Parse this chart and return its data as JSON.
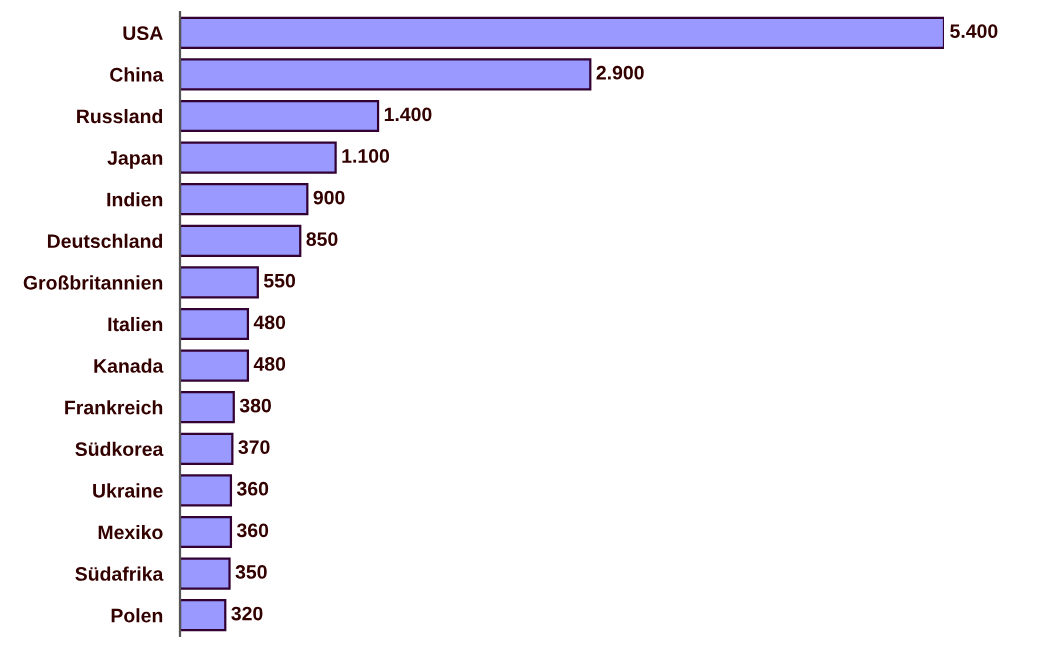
{
  "chart_data": {
    "type": "bar",
    "orientation": "horizontal",
    "color": "#9999ff",
    "categories": [
      "USA",
      "China",
      "Russland",
      "Japan",
      "Indien",
      "Deutschland",
      "Großbritannien",
      "Italien",
      "Kanada",
      "Frankreich",
      "Südkorea",
      "Ukraine",
      "Mexiko",
      "Südafrika",
      "Polen"
    ],
    "values": [
      5400,
      2900,
      1400,
      1100,
      900,
      850,
      550,
      480,
      480,
      380,
      370,
      360,
      360,
      350,
      320
    ],
    "value_labels": [
      "5.400",
      "2.900",
      "1.400",
      "1.100",
      "900",
      "850",
      "550",
      "480",
      "480",
      "380",
      "370",
      "360",
      "360",
      "350",
      "320"
    ],
    "grid": false,
    "legend": false
  }
}
